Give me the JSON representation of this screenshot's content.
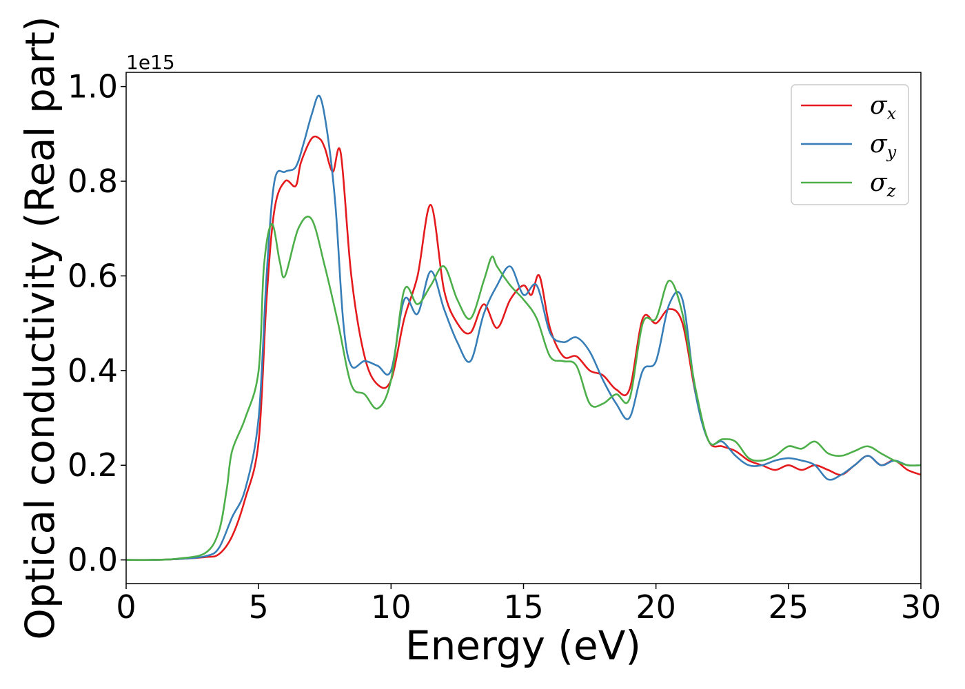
{
  "chart_data": {
    "type": "line",
    "title": "",
    "xlabel": "Energy (eV)",
    "ylabel": "Optical conductivity (Real part)",
    "y_offset_label": "1e15",
    "xlim": [
      0,
      30
    ],
    "ylim": [
      -0.05,
      1.03
    ],
    "x_ticks": [
      0,
      5,
      10,
      15,
      20,
      25,
      30
    ],
    "x_tick_labels": [
      "0",
      "5",
      "10",
      "15",
      "20",
      "25",
      "30"
    ],
    "y_ticks": [
      0.0,
      0.2,
      0.4,
      0.6,
      0.8,
      1.0
    ],
    "y_tick_labels": [
      "0.0",
      "0.2",
      "0.4",
      "0.6",
      "0.8",
      "1.0"
    ],
    "grid": false,
    "legend_position": "top-right",
    "series": [
      {
        "name": "σx",
        "symbol": "σ",
        "subscript": "x",
        "color": "#e41a1c",
        "x": [
          0,
          1,
          2,
          3,
          3.5,
          4,
          4.5,
          5,
          5.3,
          5.6,
          6,
          6.4,
          6.6,
          7,
          7.3,
          7.5,
          7.8,
          8.1,
          8.5,
          9,
          9.5,
          10,
          10.5,
          11,
          11.5,
          12,
          12.5,
          13,
          13.5,
          14,
          14.5,
          15,
          15.3,
          15.6,
          16,
          16.5,
          17,
          17.5,
          18,
          18.5,
          19,
          19.5,
          20,
          20.5,
          21,
          21.5,
          22,
          22.5,
          23,
          23.5,
          24,
          24.5,
          25,
          25.5,
          26,
          26.5,
          27,
          27.5,
          28,
          28.5,
          29,
          29.5,
          30
        ],
        "y": [
          0.0,
          0.0,
          0.002,
          0.006,
          0.012,
          0.05,
          0.13,
          0.25,
          0.55,
          0.74,
          0.8,
          0.79,
          0.84,
          0.89,
          0.89,
          0.87,
          0.82,
          0.86,
          0.6,
          0.43,
          0.37,
          0.38,
          0.51,
          0.6,
          0.75,
          0.57,
          0.5,
          0.48,
          0.54,
          0.49,
          0.55,
          0.58,
          0.56,
          0.6,
          0.49,
          0.43,
          0.43,
          0.4,
          0.39,
          0.36,
          0.36,
          0.51,
          0.5,
          0.53,
          0.5,
          0.35,
          0.25,
          0.24,
          0.23,
          0.21,
          0.2,
          0.19,
          0.2,
          0.19,
          0.2,
          0.19,
          0.18,
          0.2,
          0.22,
          0.2,
          0.21,
          0.19,
          0.18
        ]
      },
      {
        "name": "σy",
        "symbol": "σ",
        "subscript": "y",
        "color": "#377eb8",
        "x": [
          0,
          1,
          2,
          3,
          3.5,
          4,
          4.5,
          5,
          5.3,
          5.6,
          6,
          6.4,
          6.7,
          7,
          7.3,
          7.6,
          7.9,
          8.2,
          8.5,
          9,
          9.5,
          10,
          10.5,
          11,
          11.5,
          12,
          12.5,
          13,
          13.5,
          14,
          14.5,
          15,
          15.5,
          16,
          16.5,
          17,
          17.5,
          18,
          18.5,
          19,
          19.5,
          20,
          20.5,
          21,
          21.5,
          22,
          22.5,
          23,
          23.5,
          24,
          24.5,
          25,
          25.5,
          26,
          26.5,
          27,
          27.5,
          28,
          28.5,
          29,
          29.5,
          30
        ],
        "y": [
          0.0,
          0.0,
          0.002,
          0.008,
          0.025,
          0.09,
          0.15,
          0.3,
          0.6,
          0.8,
          0.82,
          0.83,
          0.88,
          0.94,
          0.98,
          0.9,
          0.75,
          0.5,
          0.41,
          0.42,
          0.41,
          0.4,
          0.55,
          0.52,
          0.61,
          0.53,
          0.46,
          0.42,
          0.52,
          0.58,
          0.62,
          0.56,
          0.58,
          0.48,
          0.46,
          0.47,
          0.44,
          0.38,
          0.33,
          0.3,
          0.4,
          0.42,
          0.54,
          0.55,
          0.35,
          0.25,
          0.25,
          0.22,
          0.2,
          0.2,
          0.21,
          0.215,
          0.21,
          0.2,
          0.17,
          0.18,
          0.2,
          0.22,
          0.2,
          0.21,
          0.2,
          0.2
        ]
      },
      {
        "name": "σz",
        "symbol": "σ",
        "subscript": "z",
        "color": "#4daf4a",
        "x": [
          0,
          1,
          2,
          3,
          3.5,
          3.8,
          4,
          4.5,
          5,
          5.2,
          5.5,
          5.8,
          6,
          6.5,
          7,
          7.5,
          8,
          8.5,
          9,
          9.5,
          10,
          10.5,
          11,
          11.5,
          12,
          12.5,
          13,
          13.5,
          13.8,
          14,
          14.5,
          15,
          15.5,
          16,
          16.5,
          17,
          17.5,
          18,
          18.5,
          19,
          19.5,
          20,
          20.5,
          21,
          21.5,
          22,
          22.5,
          23,
          23.5,
          24,
          24.5,
          25,
          25.5,
          26,
          26.5,
          27,
          27.5,
          28,
          28.5,
          29,
          29.5,
          30
        ],
        "y": [
          0.0,
          0.0,
          0.003,
          0.015,
          0.06,
          0.15,
          0.23,
          0.3,
          0.4,
          0.62,
          0.71,
          0.63,
          0.6,
          0.7,
          0.72,
          0.62,
          0.5,
          0.37,
          0.35,
          0.32,
          0.38,
          0.57,
          0.54,
          0.58,
          0.62,
          0.55,
          0.51,
          0.59,
          0.64,
          0.62,
          0.58,
          0.55,
          0.51,
          0.43,
          0.42,
          0.41,
          0.33,
          0.33,
          0.35,
          0.34,
          0.5,
          0.51,
          0.59,
          0.52,
          0.36,
          0.25,
          0.255,
          0.25,
          0.215,
          0.21,
          0.22,
          0.24,
          0.235,
          0.25,
          0.225,
          0.22,
          0.23,
          0.24,
          0.225,
          0.21,
          0.2,
          0.2
        ]
      }
    ]
  }
}
